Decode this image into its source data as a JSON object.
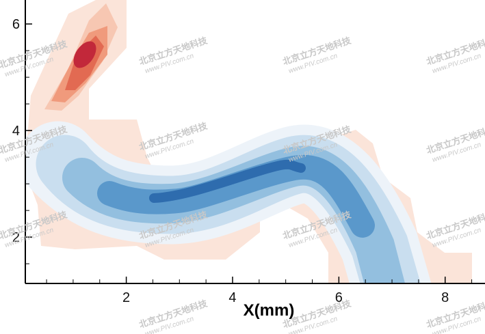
{
  "chart_data": {
    "type": "contour",
    "xlabel": "X(mm)",
    "xlim": [
      0.1,
      8.75
    ],
    "ylim": [
      1.13,
      6.45
    ],
    "xticks": [
      2,
      4,
      6,
      8
    ],
    "yticks": [
      2,
      4,
      6
    ],
    "xminorticks": [
      0.5,
      1,
      1.5,
      2.5,
      3,
      3.5,
      4.5,
      5,
      5.5,
      6.5,
      7,
      7.5,
      8.5
    ],
    "yminorticks": [
      1.5,
      2.5,
      3,
      3.5,
      4.5,
      5,
      5.5
    ],
    "watermark": [
      "北京立方天地科技",
      "www.PIV.com.cn"
    ]
  }
}
